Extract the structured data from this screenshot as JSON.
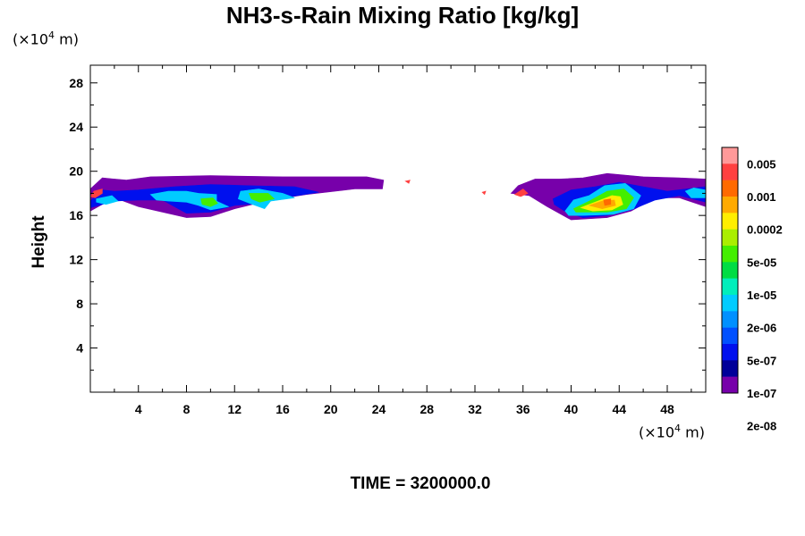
{
  "chart_data": {
    "type": "heatmap",
    "title": "NH3-s-Rain Mixing Ratio [kg/kg]",
    "ylabel": "Height",
    "xlabel": "",
    "x_unit": {
      "prefix": "(×10",
      "exp": "4",
      "suffix": " m)"
    },
    "y_unit": {
      "prefix": "(×10",
      "exp": "4",
      "suffix": " m)"
    },
    "xlim": [
      0,
      51.2
    ],
    "ylim": [
      0,
      29.6
    ],
    "x_ticks": [
      4,
      8,
      12,
      16,
      20,
      24,
      28,
      32,
      36,
      40,
      44,
      48
    ],
    "y_ticks": [
      4,
      8,
      12,
      16,
      20,
      24,
      28
    ],
    "time_label": "TIME = 3200000.0",
    "colorbar": {
      "labels": [
        "0.005",
        "0.001",
        "0.0002",
        "5e-05",
        "1e-05",
        "2e-06",
        "5e-07",
        "1e-07",
        "2e-08"
      ],
      "colors": [
        "#ff9999",
        "#ff4040",
        "#ff6a00",
        "#ffaa00",
        "#ffee00",
        "#aaee00",
        "#44ee00",
        "#00dd44",
        "#00eebb",
        "#00ccff",
        "#0090ff",
        "#0050ff",
        "#0010ee",
        "#000099",
        "#7700aa"
      ]
    },
    "regions": [
      {
        "level": 1,
        "points": [
          [
            0,
            18.4
          ],
          [
            1,
            19.4
          ],
          [
            3,
            19.2
          ],
          [
            5,
            19.5
          ],
          [
            10,
            19.6
          ],
          [
            16,
            19.5
          ],
          [
            20,
            19.5
          ],
          [
            23,
            19.5
          ],
          [
            24.4,
            19.2
          ],
          [
            24.3,
            18.4
          ],
          [
            22,
            18.4
          ],
          [
            18,
            17.9
          ],
          [
            15,
            17.4
          ],
          [
            12,
            16.6
          ],
          [
            10,
            15.9
          ],
          [
            8,
            15.8
          ],
          [
            4,
            16.8
          ],
          [
            2,
            17.6
          ],
          [
            0,
            16.4
          ]
        ]
      },
      {
        "level": 1,
        "points": [
          [
            35.6,
            18.7
          ],
          [
            37,
            19.3
          ],
          [
            39,
            19.3
          ],
          [
            41,
            19.4
          ],
          [
            43,
            19.8
          ],
          [
            46,
            19.5
          ],
          [
            49,
            19.4
          ],
          [
            51.2,
            19.3
          ],
          [
            51.2,
            16.8
          ],
          [
            49,
            17.6
          ],
          [
            47,
            17.6
          ],
          [
            45,
            16.4
          ],
          [
            43,
            15.8
          ],
          [
            40,
            15.6
          ],
          [
            38,
            16.8
          ],
          [
            36.5,
            17.8
          ],
          [
            35,
            18
          ]
        ]
      },
      {
        "level": 3,
        "points": [
          [
            0,
            17.3
          ],
          [
            1,
            18.3
          ],
          [
            2,
            18.2
          ],
          [
            4,
            18.3
          ],
          [
            7,
            18.6
          ],
          [
            10,
            18.8
          ],
          [
            13,
            18.7
          ],
          [
            17,
            18.6
          ],
          [
            19,
            18.1
          ],
          [
            16,
            17.6
          ],
          [
            14,
            17.1
          ],
          [
            12,
            16.9
          ],
          [
            10,
            16.3
          ],
          [
            8,
            16.2
          ],
          [
            6,
            17.4
          ],
          [
            4,
            17.4
          ],
          [
            2,
            17.3
          ],
          [
            0,
            16.7
          ]
        ]
      },
      {
        "level": 3,
        "points": [
          [
            38.5,
            17.5
          ],
          [
            40,
            18.3
          ],
          [
            42,
            18.6
          ],
          [
            44,
            19
          ],
          [
            46,
            18.6
          ],
          [
            48,
            18.2
          ],
          [
            51.2,
            18.6
          ],
          [
            51.2,
            17.2
          ],
          [
            49,
            17.8
          ],
          [
            47,
            17.4
          ],
          [
            45,
            16.5
          ],
          [
            43,
            16
          ],
          [
            41,
            15.8
          ],
          [
            39.6,
            16.3
          ],
          [
            38.6,
            17
          ]
        ]
      },
      {
        "level": 6,
        "points": [
          [
            0.5,
            17.5
          ],
          [
            1.8,
            17.8
          ],
          [
            2.3,
            17.3
          ],
          [
            1.3,
            17
          ],
          [
            0.5,
            17.2
          ]
        ]
      },
      {
        "level": 6,
        "points": [
          [
            5,
            17.9
          ],
          [
            6.5,
            18.2
          ],
          [
            8,
            18.2
          ],
          [
            9,
            18
          ],
          [
            10.5,
            17.9
          ],
          [
            10.5,
            17.3
          ],
          [
            11.5,
            16.8
          ],
          [
            10,
            16.5
          ],
          [
            9,
            16.9
          ],
          [
            8,
            17.2
          ],
          [
            6.5,
            17.3
          ],
          [
            5.5,
            17.4
          ]
        ]
      },
      {
        "level": 6,
        "points": [
          [
            12.5,
            18.2
          ],
          [
            14,
            18.4
          ],
          [
            16,
            18
          ],
          [
            17,
            17.6
          ],
          [
            15,
            17.3
          ],
          [
            14.5,
            16.6
          ],
          [
            13.5,
            17
          ],
          [
            12.3,
            17.5
          ]
        ]
      },
      {
        "level": 6,
        "points": [
          [
            39.5,
            16.4
          ],
          [
            40.2,
            17.4
          ],
          [
            41.5,
            17.8
          ],
          [
            42.8,
            18.7
          ],
          [
            44.5,
            18.9
          ],
          [
            45.8,
            17.8
          ],
          [
            45.2,
            16.6
          ],
          [
            43.5,
            16.1
          ],
          [
            41,
            16
          ],
          [
            39.8,
            16
          ]
        ]
      },
      {
        "level": 6,
        "points": [
          [
            49.5,
            18.2
          ],
          [
            50.2,
            18.5
          ],
          [
            51.2,
            18.3
          ],
          [
            51.2,
            17.6
          ],
          [
            50,
            17.6
          ]
        ]
      },
      {
        "level": 9,
        "points": [
          [
            9.2,
            17.5
          ],
          [
            10.2,
            17.6
          ],
          [
            10.6,
            17.1
          ],
          [
            10,
            16.8
          ],
          [
            9.3,
            17
          ]
        ]
      },
      {
        "level": 9,
        "points": [
          [
            13.2,
            18
          ],
          [
            14.8,
            18
          ],
          [
            15.3,
            17.5
          ],
          [
            14.1,
            17.2
          ],
          [
            13.4,
            17.5
          ]
        ]
      },
      {
        "level": 9,
        "points": [
          [
            40.2,
            16.6
          ],
          [
            41.5,
            17.3
          ],
          [
            43,
            18.2
          ],
          [
            44.4,
            18.4
          ],
          [
            45.2,
            17.6
          ],
          [
            44.6,
            16.6
          ],
          [
            43,
            16.3
          ],
          [
            41,
            16.3
          ],
          [
            40.4,
            16.3
          ]
        ]
      },
      {
        "level": 11,
        "points": [
          [
            40.8,
            16.7
          ],
          [
            42,
            17.2
          ],
          [
            43.4,
            17.8
          ],
          [
            44.1,
            17.7
          ],
          [
            44.3,
            17
          ],
          [
            43.4,
            16.5
          ],
          [
            41.8,
            16.4
          ]
        ]
      },
      {
        "level": 12,
        "points": [
          [
            41.5,
            16.9
          ],
          [
            42.6,
            17.3
          ],
          [
            43.6,
            17.4
          ],
          [
            43.7,
            16.9
          ],
          [
            42.6,
            16.6
          ]
        ]
      },
      {
        "level": 13,
        "points": [
          [
            42.7,
            17.4
          ],
          [
            43.3,
            17.5
          ],
          [
            43.3,
            17
          ],
          [
            42.8,
            16.9
          ]
        ]
      },
      {
        "level": 14,
        "points": [
          [
            0,
            17.7
          ],
          [
            0.3,
            18.2
          ],
          [
            1,
            18.4
          ],
          [
            1,
            18
          ],
          [
            0.4,
            17.6
          ]
        ]
      },
      {
        "level": 14,
        "points": [
          [
            26.2,
            19.1
          ],
          [
            26.6,
            19.2
          ],
          [
            26.5,
            18.9
          ]
        ]
      },
      {
        "level": 14,
        "points": [
          [
            32.6,
            18.1
          ],
          [
            32.9,
            18.2
          ],
          [
            32.8,
            17.9
          ]
        ]
      },
      {
        "level": 14,
        "points": [
          [
            35.3,
            17.9
          ],
          [
            36,
            18.4
          ],
          [
            36.4,
            18
          ],
          [
            35.8,
            17.7
          ]
        ]
      }
    ]
  }
}
